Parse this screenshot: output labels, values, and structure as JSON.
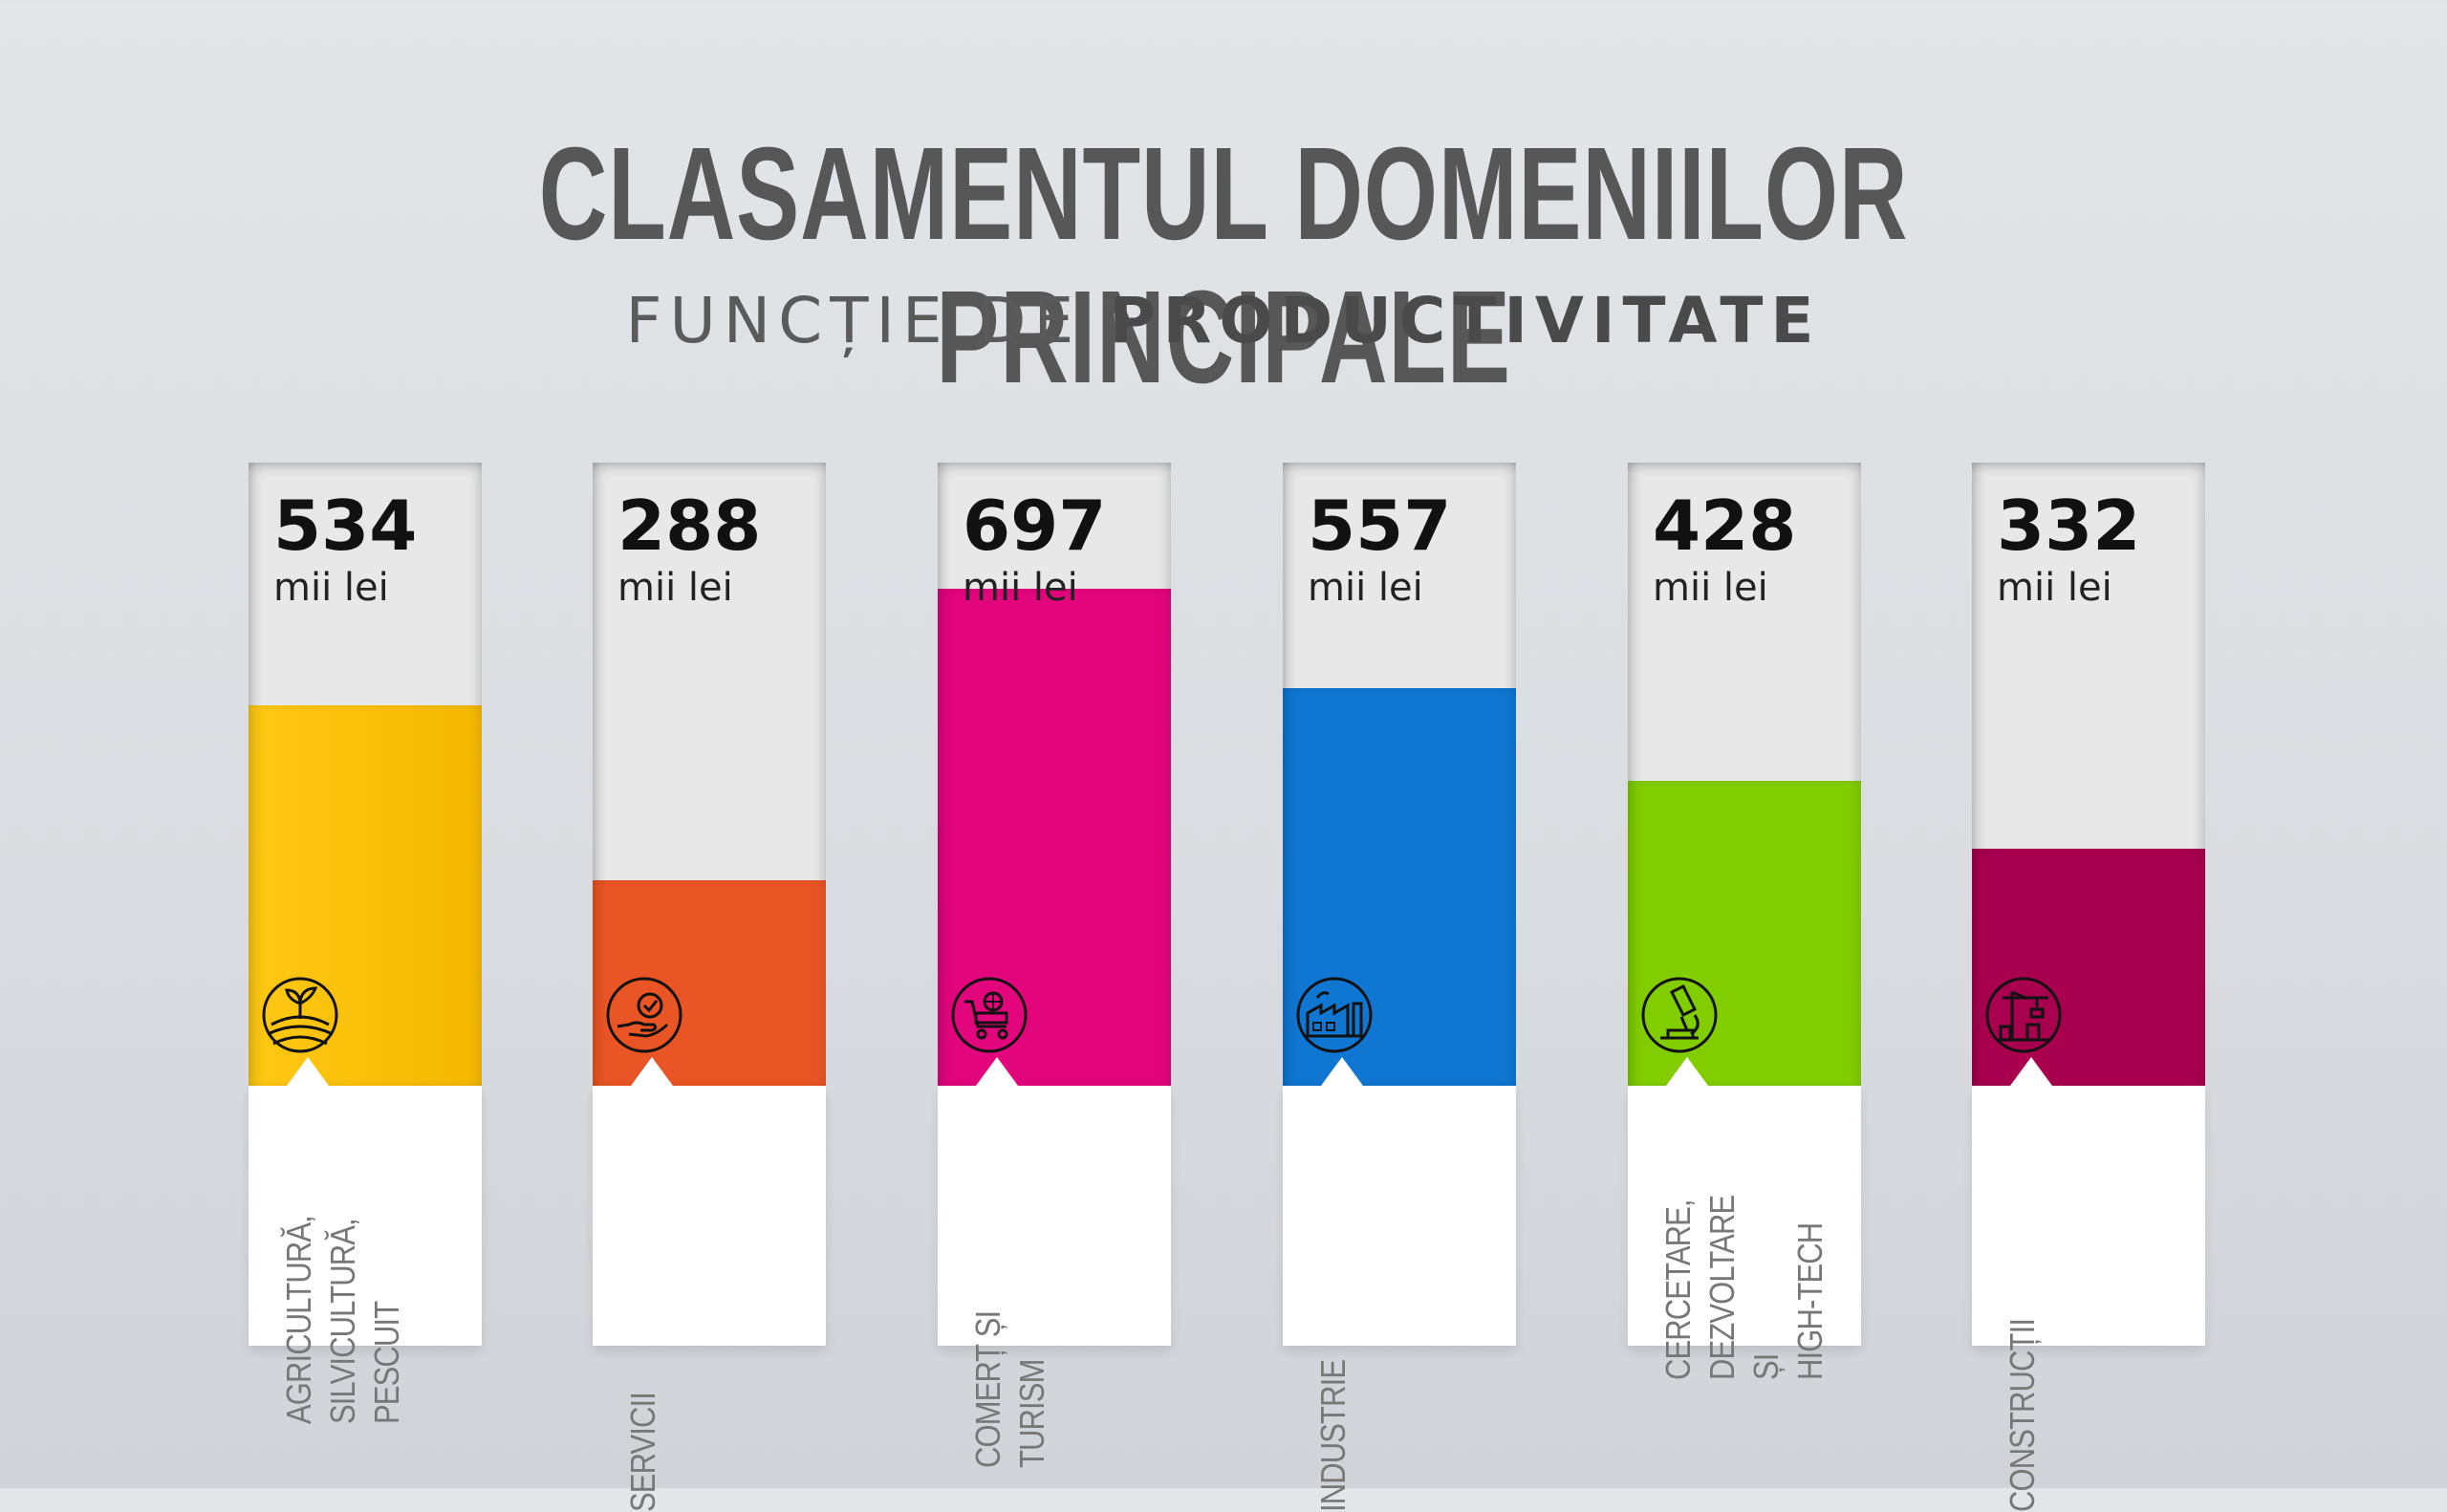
{
  "header": {
    "title": "CLASAMENTUL DOMENIILOR PRINCIPALE",
    "subtitle_light": "FUNCȚIE DE",
    "subtitle_bold": "PRODUCTIVITATE"
  },
  "chart_data": {
    "type": "bar",
    "title": "CLASAMENTUL DOMENIILOR PRINCIPALE",
    "subtitle": "FUNCȚIE DE PRODUCTIVITATE",
    "unit": "mii lei",
    "categories": [
      "AGRICULTURĂ, SILVICULTURĂ, PESCUIT",
      "SERVICII",
      "COMERȚ ȘI TURISM",
      "INDUSTRIE",
      "CERCETARE, DEZVOLTARE ȘI HIGH-TECH",
      "CONSTRUCȚII"
    ],
    "values": [
      534,
      288,
      697,
      557,
      428,
      332
    ],
    "ylim": [
      0,
      697
    ],
    "grid": false,
    "legend": "none"
  },
  "bars": [
    {
      "value": "534",
      "unit": "mii lei",
      "label": "Agricultură,\nSilvicultură,\nPescuit",
      "color": "#f4b800",
      "color2": "#ffc814",
      "icon": "plant-field-icon"
    },
    {
      "value": "288",
      "unit": "mii lei",
      "label": "Servicii",
      "color": "#ea5525",
      "color2": "#ea5525",
      "icon": "hand-service-icon"
    },
    {
      "value": "697",
      "unit": "mii lei",
      "label": "Comerț și\nTurism",
      "color": "#e2057c",
      "color2": "#e2057c",
      "icon": "shopping-cart-globe-icon"
    },
    {
      "value": "557",
      "unit": "mii lei",
      "label": "Industrie",
      "color": "#0f76d1",
      "color2": "#0f76d1",
      "icon": "factory-icon"
    },
    {
      "value": "428",
      "unit": "mii lei",
      "label": "Cercetare,\nDezvoltare și\nHigh-Tech",
      "color": "#82cd00",
      "color2": "#82cd00",
      "icon": "microscope-icon"
    },
    {
      "value": "332",
      "unit": "mii lei",
      "label": "Construcții",
      "color": "#a8004f",
      "color2": "#a8004f",
      "icon": "crane-icon"
    }
  ]
}
